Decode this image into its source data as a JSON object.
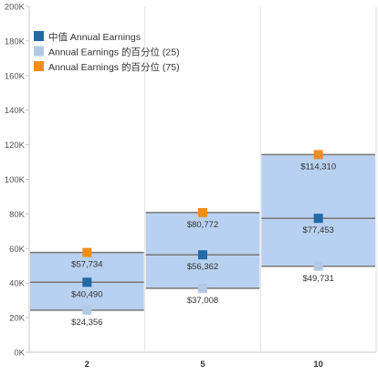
{
  "chart_data": {
    "type": "box",
    "title": "",
    "xlabel": "",
    "ylabel": "",
    "ylim": [
      0,
      200000
    ],
    "y_ticks": [
      0,
      20000,
      40000,
      60000,
      80000,
      100000,
      120000,
      140000,
      160000,
      180000,
      200000
    ],
    "y_tick_labels": [
      "0K",
      "20K",
      "40K",
      "60K",
      "80K",
      "100K",
      "120K",
      "140K",
      "160K",
      "180K",
      "200K"
    ],
    "categories": [
      "2",
      "5",
      "10"
    ],
    "series": [
      {
        "key": "p25",
        "name": "Annual Earnings 的百分位 (25)",
        "color": "#b3c8e6",
        "values": [
          24356,
          37008,
          49731
        ],
        "labels": [
          "$24,356",
          "$37,008",
          "$49,731"
        ]
      },
      {
        "key": "median",
        "name": "中值 Annual Earnings",
        "color": "#2369a8",
        "values": [
          40490,
          56362,
          77453
        ],
        "labels": [
          "$40,490",
          "$56,362",
          "$77,453"
        ]
      },
      {
        "key": "p75",
        "name": "Annual Earnings 的百分位 (75)",
        "color": "#f28c1e",
        "values": [
          57734,
          80772,
          114310
        ],
        "labels": [
          "$57,734",
          "$80,772",
          "$114,310"
        ]
      }
    ],
    "legend_order": [
      "median",
      "p25",
      "p75"
    ],
    "legend_position": "top-left",
    "box_fill": "#b8d1f0",
    "line_color": "#777777",
    "grid": false
  }
}
